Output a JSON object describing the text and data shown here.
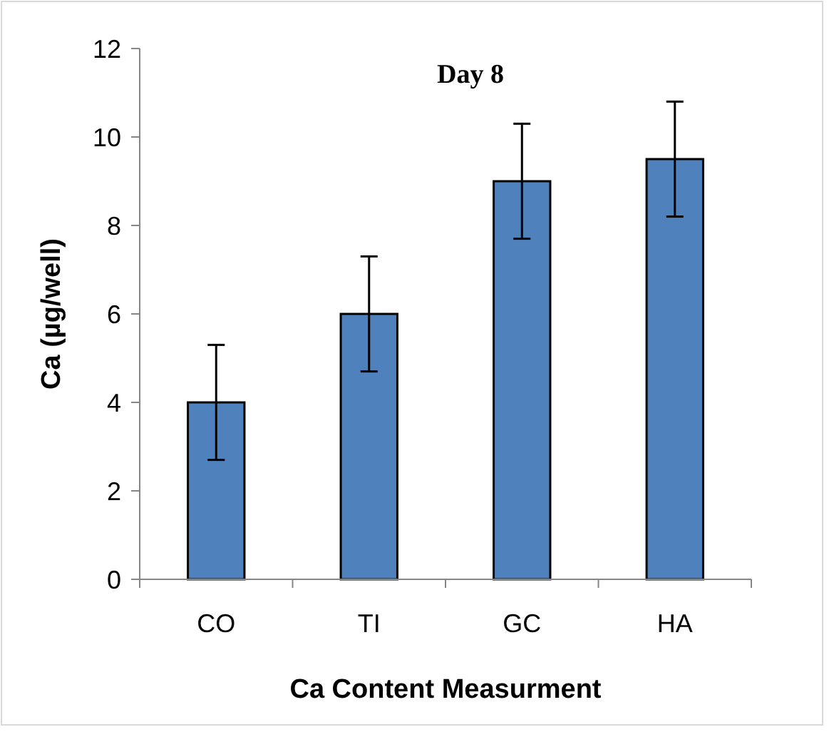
{
  "chart_data": {
    "type": "bar",
    "title": "Day 8",
    "xlabel": "Ca Content Measurment",
    "ylabel": "Ca (µg/well)",
    "categories": [
      "CO",
      "TI",
      "GC",
      "HA"
    ],
    "values": [
      4,
      6,
      9,
      9.5
    ],
    "errors": [
      1.3,
      1.3,
      1.3,
      1.3
    ],
    "color": "#4f81bd",
    "ylim": [
      0,
      12
    ],
    "yticks": [
      0,
      2,
      4,
      6,
      8,
      10,
      12
    ],
    "grid": false
  }
}
